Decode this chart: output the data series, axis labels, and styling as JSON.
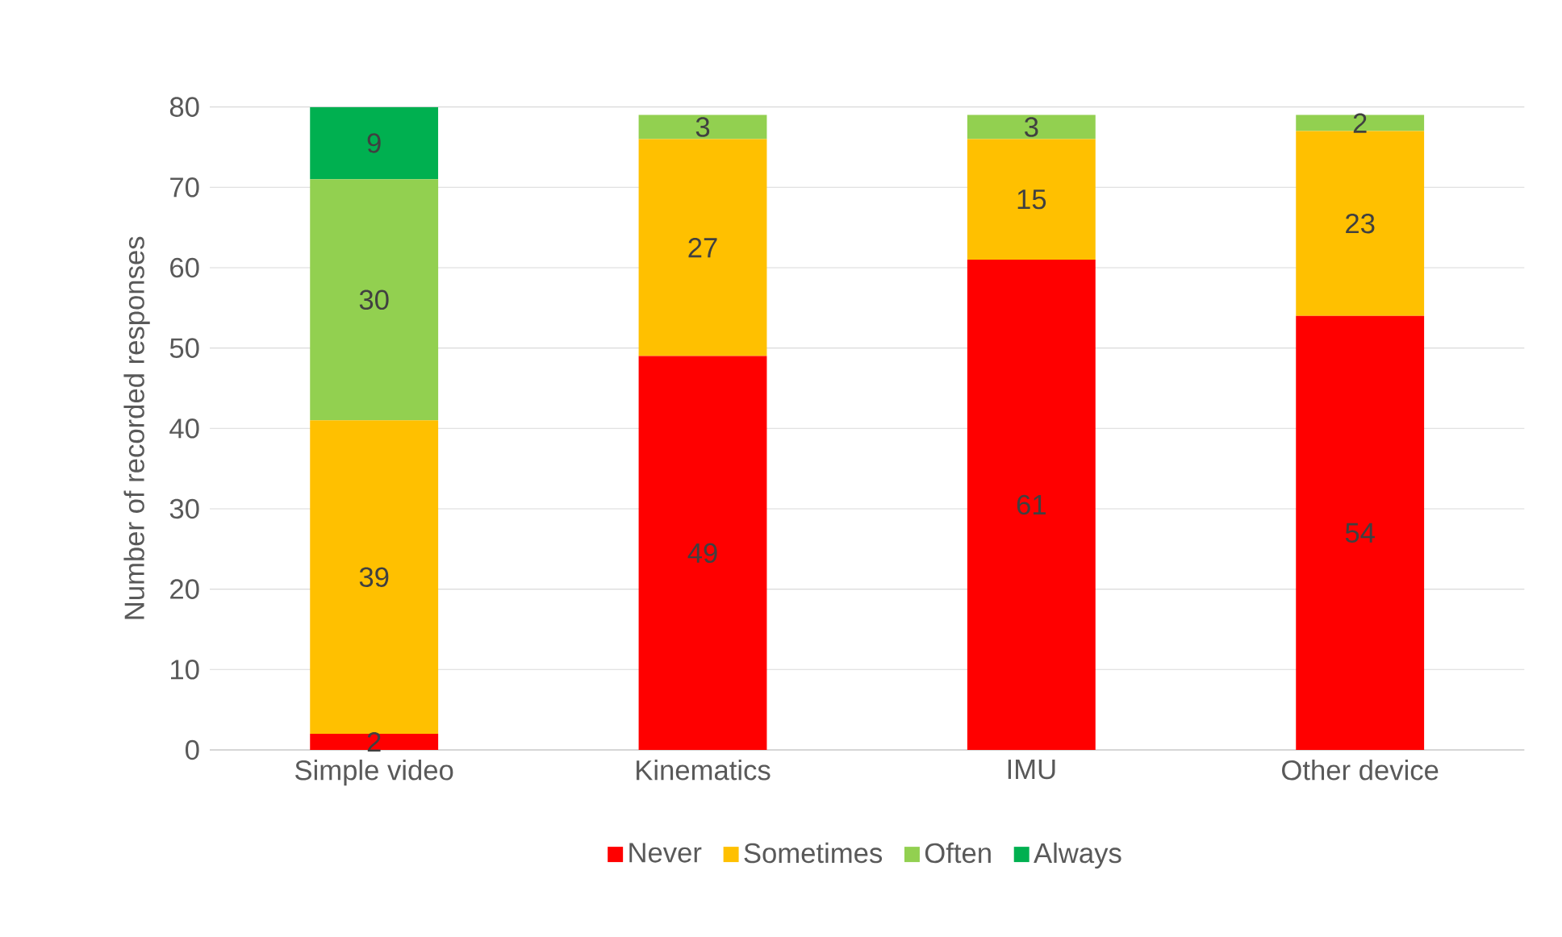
{
  "chart_data": {
    "type": "bar",
    "stacked": true,
    "ylabel": "Number of recorded responses",
    "categories": [
      "Simple video",
      "Kinematics",
      "IMU",
      "Other device"
    ],
    "series": [
      {
        "name": "Never",
        "color": "#ff0000",
        "values": [
          2,
          49,
          61,
          54
        ],
        "value_labels": [
          "2",
          "49",
          "61",
          "54"
        ]
      },
      {
        "name": "Sometimes",
        "color": "#ffc000",
        "values": [
          39,
          27,
          15,
          23
        ],
        "value_labels": [
          "39",
          "27",
          "15",
          "23"
        ]
      },
      {
        "name": "Often",
        "color": "#92d050",
        "values": [
          30,
          3,
          3,
          2
        ],
        "value_labels": [
          "30",
          "3",
          "3",
          "2"
        ]
      },
      {
        "name": "Always",
        "color": "#00b050",
        "values": [
          9,
          0,
          0,
          0
        ],
        "value_labels": [
          "9",
          null,
          null,
          null
        ]
      }
    ],
    "ylim": [
      0,
      80
    ],
    "yticks": [
      0,
      10,
      20,
      30,
      40,
      50,
      60,
      70,
      80
    ],
    "grid": "y",
    "legend": "bottom"
  }
}
